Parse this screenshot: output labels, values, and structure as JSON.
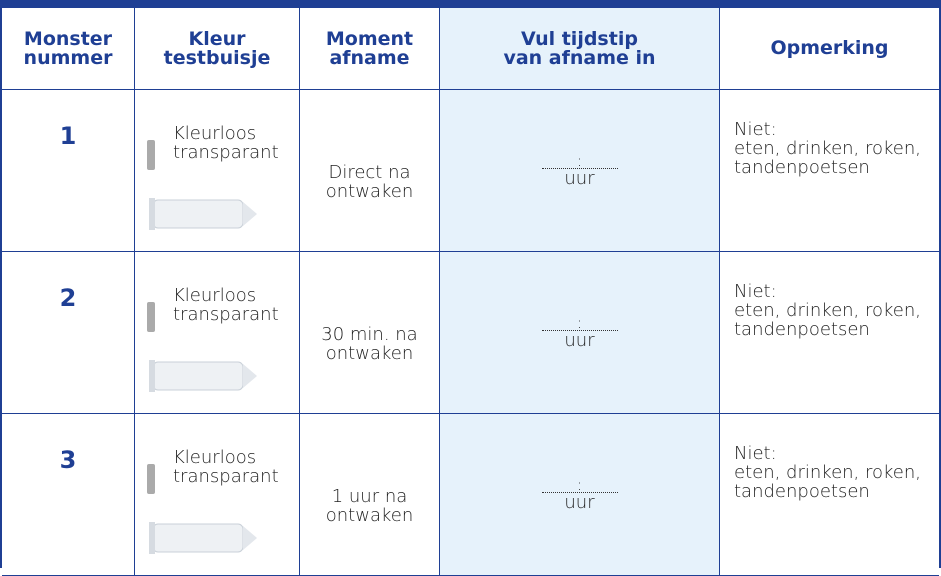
{
  "header": {
    "columns": [
      [
        "Monster",
        "nummer"
      ],
      [
        "Kleur",
        "testbuisje"
      ],
      [
        "Moment",
        "afname"
      ],
      [
        "Vul tijdstip",
        "van afname in"
      ],
      [
        "Opmerking"
      ]
    ]
  },
  "table": {
    "rows": [
      {
        "number": "1",
        "color": [
          "Kleurloos",
          "transparant"
        ],
        "moment": [
          "Direct na",
          "ontwaken"
        ],
        "time": [
          ":",
          "uur"
        ],
        "remark": [
          "Niet:",
          "eten, drinken, roken,",
          "tandenpoetsen"
        ]
      },
      {
        "number": "2",
        "color": [
          "Kleurloos",
          "transparant"
        ],
        "moment": [
          "30 min. na",
          "ontwaken"
        ],
        "time": [
          ":",
          "uur"
        ],
        "remark": [
          "Niet:",
          "eten, drinken, roken,",
          "tandenpoetsen"
        ]
      },
      {
        "number": "3",
        "color": [
          "Kleurloos",
          "transparant"
        ],
        "moment": [
          "1 uur na",
          "ontwaken"
        ],
        "time": [
          ":",
          "uur"
        ],
        "remark": [
          "Niet:",
          "eten, drinken, roken,",
          "tandenpoetsen"
        ]
      }
    ]
  }
}
